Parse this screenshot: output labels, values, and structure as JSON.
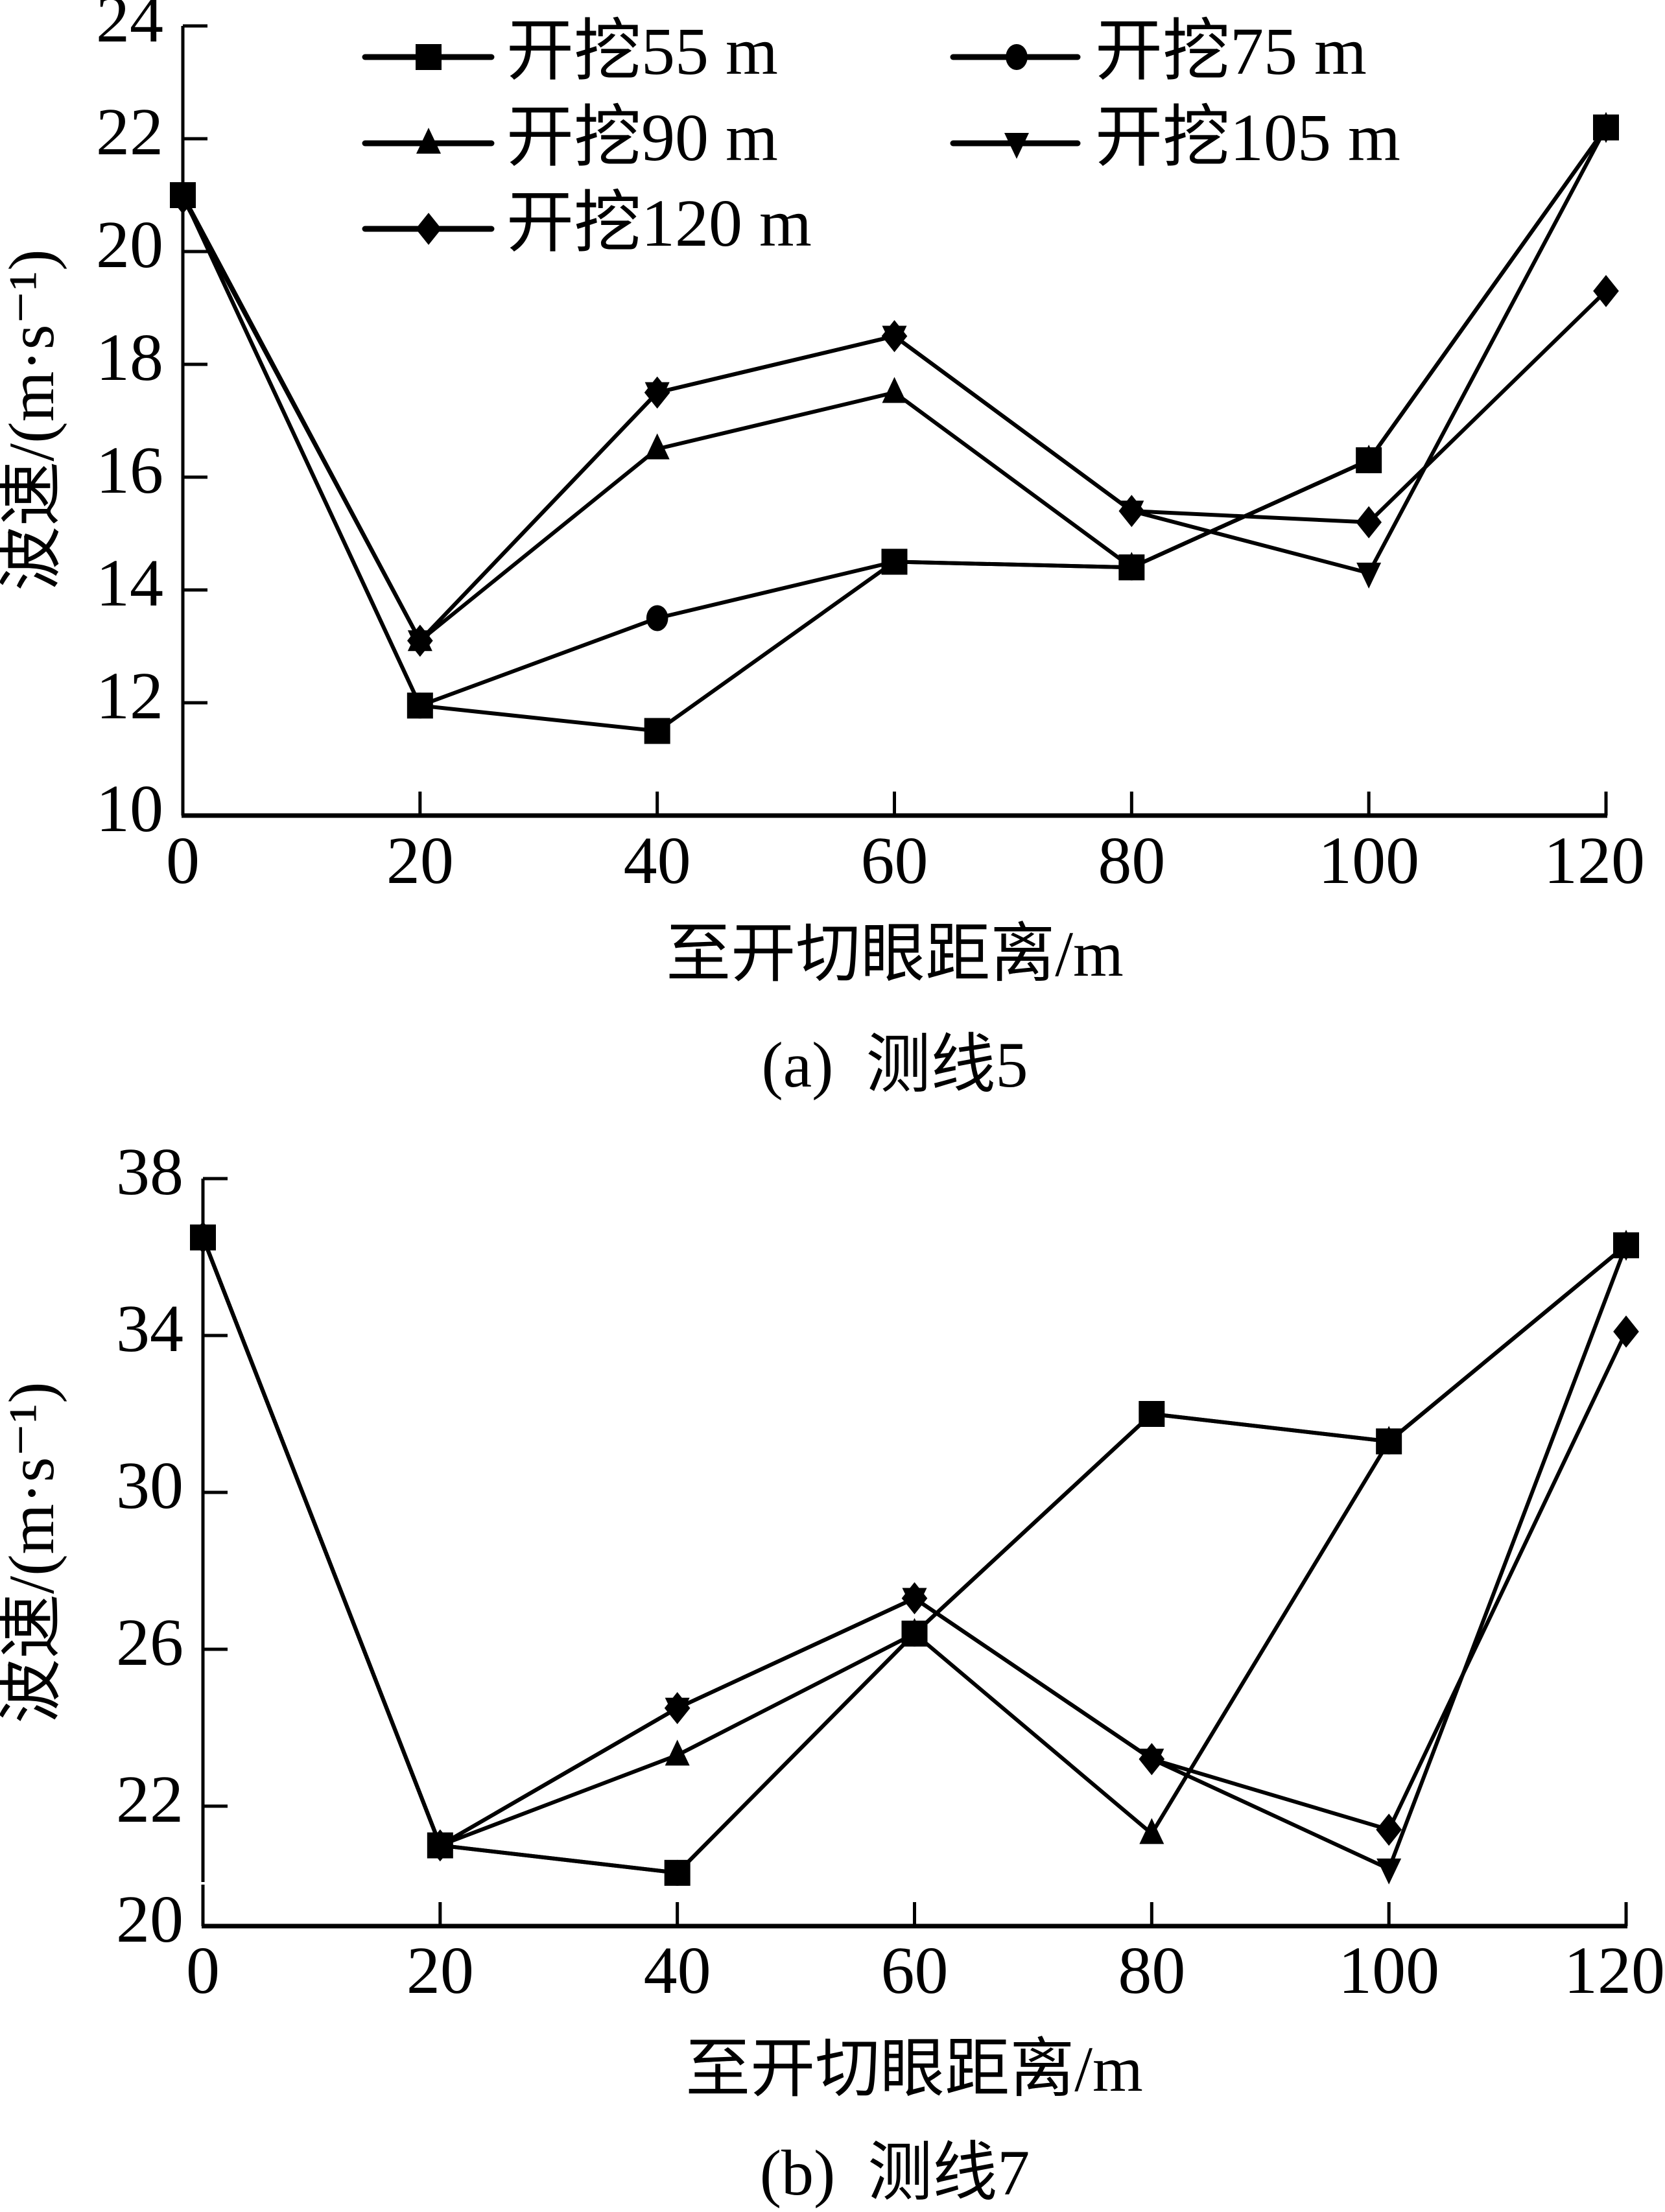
{
  "colors": {
    "ink": "#000000",
    "background": "#ffffff"
  },
  "chart_data": [
    {
      "type": "line",
      "id": "a",
      "caption": "(a)  测线5",
      "xlabel": "至开切眼距离/m",
      "ylabel": "波速/(m·s⁻¹)",
      "x": [
        0,
        20,
        40,
        60,
        80,
        100,
        120
      ],
      "xlim": [
        0,
        120
      ],
      "ylim": [
        10,
        24
      ],
      "xticks": [
        "0",
        "20",
        "40",
        "60",
        "80",
        "100",
        "120"
      ],
      "yticks": [
        "10",
        "12",
        "14",
        "16",
        "18",
        "20",
        "22",
        "24"
      ],
      "grid": false,
      "legend_position": "top",
      "series": [
        {
          "name": "开挖55 m",
          "marker": "square",
          "values": [
            21.0,
            11.95,
            11.5,
            14.5,
            14.4,
            16.3,
            22.2
          ]
        },
        {
          "name": "开挖75 m",
          "marker": "circle",
          "values": [
            21.0,
            11.95,
            13.5,
            14.5,
            14.4,
            16.3,
            22.2
          ]
        },
        {
          "name": "开挖90 m",
          "marker": "triangle-up",
          "values": [
            21.0,
            13.1,
            16.5,
            17.5,
            14.4,
            16.3,
            22.2
          ]
        },
        {
          "name": "开挖105 m",
          "marker": "triangle-down",
          "values": [
            21.0,
            13.1,
            17.5,
            18.5,
            15.4,
            14.3,
            22.2
          ]
        },
        {
          "name": "开挖120 m",
          "marker": "diamond",
          "values": [
            20.95,
            13.1,
            17.5,
            18.5,
            15.4,
            15.2,
            19.3
          ]
        }
      ]
    },
    {
      "type": "line",
      "id": "b",
      "caption": "(b)  测线7",
      "xlabel": "至开切眼距离/m",
      "ylabel": "波速/(m·s⁻¹)",
      "x": [
        0,
        20,
        40,
        60,
        80,
        100,
        120
      ],
      "xlim": [
        0,
        120
      ],
      "ylim": [
        20,
        38
      ],
      "y_axis_break": "between 20 and 22",
      "xticks": [
        "0",
        "20",
        "40",
        "60",
        "80",
        "100",
        "120"
      ],
      "yticks": [
        "20",
        "22",
        "26",
        "30",
        "34",
        "38"
      ],
      "grid": false,
      "legend_position": "none",
      "series": [
        {
          "name": "开挖55 m",
          "marker": "square",
          "values": [
            36.5,
            21.0,
            20.3,
            26.4,
            32.0,
            31.3,
            36.3
          ]
        },
        {
          "name": "开挖75 m",
          "marker": "circle",
          "values": [
            36.5,
            21.0,
            20.3,
            26.4,
            32.0,
            31.3,
            36.3
          ]
        },
        {
          "name": "开挖90 m",
          "marker": "triangle-up",
          "values": [
            36.5,
            21.0,
            23.3,
            26.4,
            21.3,
            31.3,
            36.3
          ]
        },
        {
          "name": "开挖105 m",
          "marker": "triangle-down",
          "values": [
            36.5,
            21.0,
            24.5,
            27.3,
            23.2,
            20.4,
            36.3
          ]
        },
        {
          "name": "开挖120 m",
          "marker": "diamond",
          "values": [
            36.5,
            21.0,
            24.5,
            27.3,
            23.2,
            21.4,
            34.1
          ]
        }
      ]
    }
  ]
}
